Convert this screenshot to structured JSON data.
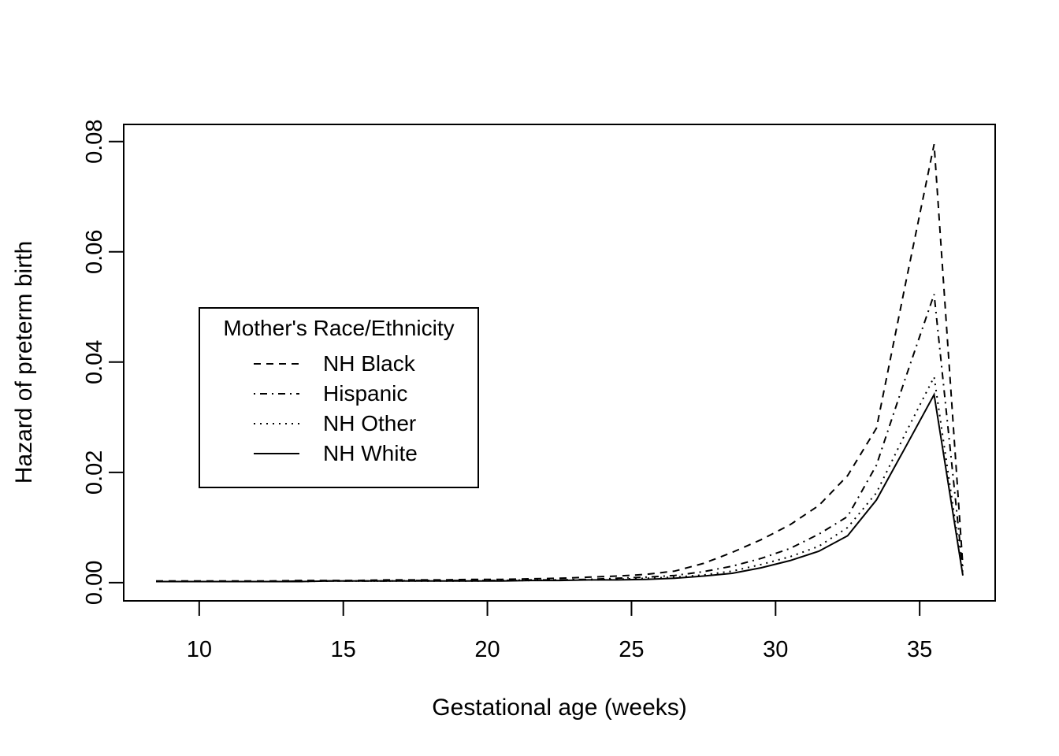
{
  "chart_data": {
    "type": "line",
    "title": "",
    "xlabel": "Gestational age (weeks)",
    "ylabel": "Hazard of preterm birth",
    "x_ticks": [
      10,
      15,
      20,
      25,
      30,
      35
    ],
    "y_ticks": [
      "0.00",
      "0.02",
      "0.04",
      "0.06",
      "0.08"
    ],
    "y_tick_values": [
      0.0,
      0.02,
      0.04,
      0.06,
      0.08
    ],
    "xlim": [
      7.38,
      37.62
    ],
    "ylim": [
      -0.0033,
      0.0831
    ],
    "grid": false,
    "background_color": "#ffffff",
    "line_color": "#000000",
    "legend": {
      "title": "Mother's Race/Ethnicity",
      "position": "left-middle"
    },
    "x": [
      8.5,
      9.5,
      10.5,
      11.5,
      12.5,
      13.5,
      14.5,
      15.5,
      16.5,
      17.5,
      18.5,
      19.5,
      20.5,
      21.5,
      22.5,
      23.5,
      24.5,
      25.5,
      26.5,
      27.5,
      28.5,
      29.5,
      30.5,
      31.5,
      32.5,
      33.5,
      34.5,
      35.5,
      36.5
    ],
    "series": [
      {
        "name": "NH Black",
        "line_style": "dashed",
        "values": [
          0.0003,
          0.0003,
          0.0003,
          0.0003,
          0.0003,
          0.0004,
          0.0004,
          0.0004,
          0.0005,
          0.0005,
          0.0005,
          0.0006,
          0.0006,
          0.0007,
          0.0008,
          0.001,
          0.0012,
          0.0015,
          0.0021,
          0.0035,
          0.0055,
          0.0078,
          0.0105,
          0.014,
          0.0194,
          0.028,
          0.054,
          0.0795,
          0.003
        ]
      },
      {
        "name": "Hispanic",
        "line_style": "dash-dot",
        "values": [
          0.0002,
          0.0002,
          0.0002,
          0.0002,
          0.0002,
          0.0003,
          0.0003,
          0.0003,
          0.0003,
          0.0004,
          0.0004,
          0.0004,
          0.0004,
          0.0005,
          0.0005,
          0.0006,
          0.0008,
          0.001,
          0.0013,
          0.002,
          0.003,
          0.0044,
          0.0062,
          0.0088,
          0.012,
          0.0213,
          0.037,
          0.0523,
          0.0022
        ]
      },
      {
        "name": "NH Other",
        "line_style": "dotted",
        "values": [
          0.0002,
          0.0002,
          0.0002,
          0.0002,
          0.0002,
          0.0002,
          0.0003,
          0.0003,
          0.0003,
          0.0003,
          0.0003,
          0.0003,
          0.0004,
          0.0004,
          0.0005,
          0.0005,
          0.0006,
          0.0008,
          0.001,
          0.0014,
          0.0021,
          0.0033,
          0.0047,
          0.0066,
          0.01,
          0.0163,
          0.027,
          0.0373,
          0.0016
        ]
      },
      {
        "name": "NH White",
        "line_style": "solid",
        "values": [
          0.0002,
          0.0002,
          0.0002,
          0.0002,
          0.0002,
          0.0002,
          0.0003,
          0.0003,
          0.0003,
          0.0003,
          0.0003,
          0.0003,
          0.0003,
          0.0004,
          0.0004,
          0.0005,
          0.0005,
          0.0006,
          0.0008,
          0.0012,
          0.0017,
          0.0027,
          0.004,
          0.0057,
          0.0085,
          0.015,
          0.0245,
          0.0341,
          0.0013
        ]
      }
    ]
  }
}
